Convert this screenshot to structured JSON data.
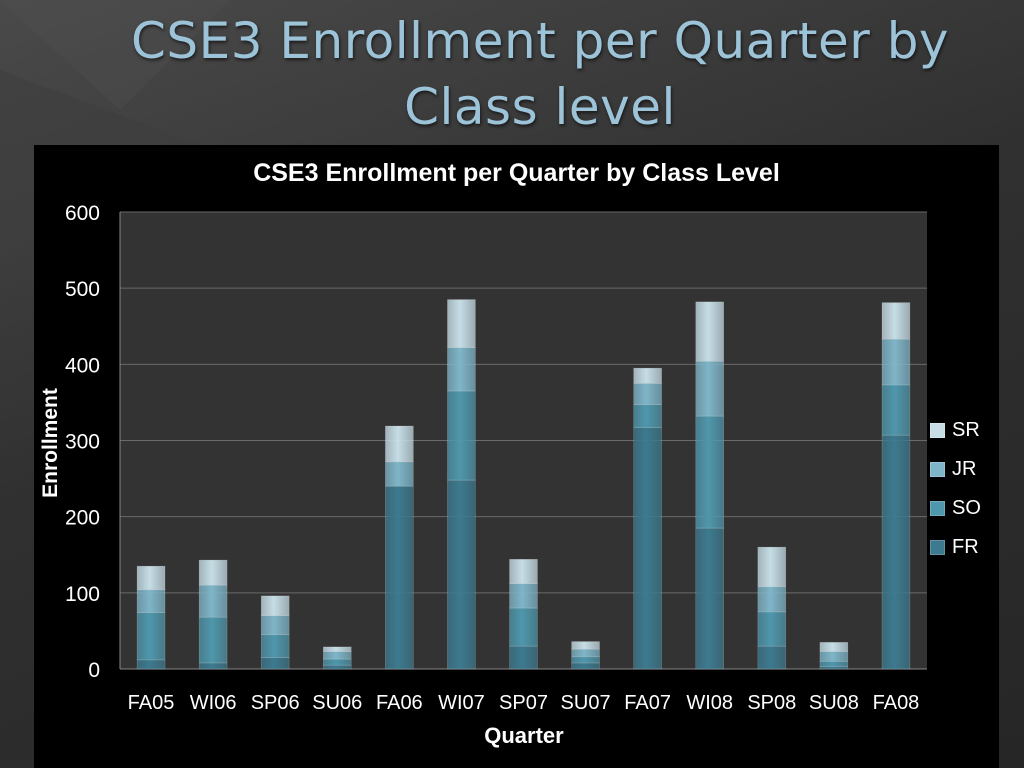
{
  "slide": {
    "title": "CSE3 Enrollment per Quarter by Class level"
  },
  "colors": {
    "FR": "#3d7a8f",
    "SO": "#4f97ac",
    "JR": "#7fb5c8",
    "SR": "#c6dde6",
    "panel": "#000000",
    "plot_area": "#333333"
  },
  "chart_data": {
    "type": "bar",
    "stacked": true,
    "title": "CSE3 Enrollment per Quarter by  Class Level",
    "xlabel": "Quarter",
    "ylabel": "Enrollment",
    "categories": [
      "FA05",
      "WI06",
      "SP06",
      "SU06",
      "FA06",
      "WI07",
      "SP07",
      "SU07",
      "FA07",
      "WI08",
      "SP08",
      "SU08",
      "FA08"
    ],
    "ylim": [
      0,
      600
    ],
    "yticks": [
      "0",
      "100",
      "200",
      "300",
      "400",
      "500",
      "600"
    ],
    "grid": true,
    "legend_position": "right",
    "series": [
      {
        "name": "FR",
        "values": [
          12,
          8,
          15,
          5,
          240,
          248,
          30,
          8,
          317,
          185,
          30,
          3,
          307
        ]
      },
      {
        "name": "SO",
        "values": [
          62,
          60,
          30,
          8,
          0,
          117,
          50,
          8,
          30,
          147,
          45,
          7,
          66
        ]
      },
      {
        "name": "JR",
        "values": [
          30,
          42,
          25,
          10,
          32,
          57,
          32,
          10,
          28,
          72,
          33,
          13,
          60
        ]
      },
      {
        "name": "SR",
        "values": [
          31,
          33,
          26,
          6,
          47,
          63,
          32,
          10,
          20,
          78,
          52,
          12,
          48
        ]
      }
    ]
  }
}
